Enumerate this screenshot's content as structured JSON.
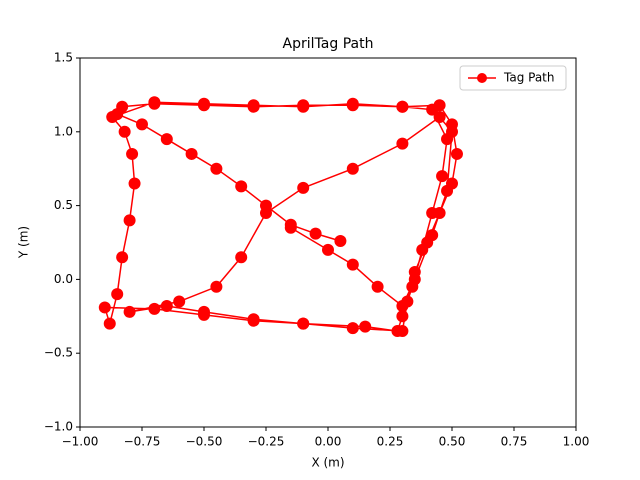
{
  "chart_data": {
    "type": "line",
    "title": "AprilTag Path",
    "x_label": "X (m)",
    "y_label": "Y (m)",
    "x": [
      0.05,
      -0.05,
      -0.15,
      -0.25,
      -0.35,
      -0.45,
      -0.55,
      -0.65,
      -0.75,
      -0.85,
      -0.83,
      -0.7,
      -0.5,
      -0.3,
      -0.1,
      0.1,
      0.3,
      0.45,
      0.5,
      0.52,
      0.5,
      0.45,
      0.4,
      0.35,
      0.32,
      0.3,
      0.1,
      -0.1,
      -0.3,
      -0.5,
      -0.7,
      -0.9,
      -0.88,
      -0.85,
      -0.83,
      -0.8,
      -0.78,
      -0.79,
      -0.82,
      -0.87,
      -0.7,
      -0.5,
      -0.3,
      -0.1,
      0.1,
      0.3,
      0.42,
      0.48,
      0.46,
      0.42,
      0.38,
      0.34,
      0.3,
      0.28,
      0.15,
      -0.1,
      -0.3,
      -0.5,
      -0.65,
      -0.8,
      -0.6,
      -0.45,
      -0.35,
      -0.25,
      -0.1,
      0.1,
      0.3,
      0.45,
      0.5,
      0.48,
      0.42,
      0.35,
      0.3,
      0.2,
      0.1,
      0.0,
      -0.15
    ],
    "series": [
      {
        "name": "Tag Path",
        "color": "#ff0000",
        "values": [
          0.26,
          0.31,
          0.37,
          0.5,
          0.63,
          0.75,
          0.85,
          0.95,
          1.05,
          1.12,
          1.17,
          1.19,
          1.18,
          1.17,
          1.18,
          1.18,
          1.17,
          1.18,
          1.05,
          0.85,
          0.65,
          0.45,
          0.25,
          0.05,
          -0.15,
          -0.35,
          -0.33,
          -0.3,
          -0.28,
          -0.24,
          -0.2,
          -0.19,
          -0.3,
          -0.1,
          0.15,
          0.4,
          0.65,
          0.85,
          1.0,
          1.1,
          1.2,
          1.19,
          1.18,
          1.17,
          1.19,
          1.17,
          1.15,
          0.95,
          0.7,
          0.45,
          0.2,
          -0.05,
          -0.25,
          -0.35,
          -0.32,
          -0.3,
          -0.27,
          -0.22,
          -0.18,
          -0.22,
          -0.15,
          -0.05,
          0.15,
          0.45,
          0.62,
          0.75,
          0.92,
          1.1,
          1.0,
          0.6,
          0.3,
          0.0,
          -0.18,
          -0.05,
          0.1,
          0.2,
          0.35
        ]
      }
    ],
    "xlim": [
      -1.0,
      1.0
    ],
    "ylim": [
      -1.0,
      1.5
    ],
    "xticks": [
      {
        "value": -1.0,
        "label": "−1.00"
      },
      {
        "value": -0.75,
        "label": "−0.75"
      },
      {
        "value": -0.5,
        "label": "−0.50"
      },
      {
        "value": -0.25,
        "label": "−0.25"
      },
      {
        "value": 0.0,
        "label": "0.00"
      },
      {
        "value": 0.25,
        "label": "0.25"
      },
      {
        "value": 0.5,
        "label": "0.50"
      },
      {
        "value": 0.75,
        "label": "0.75"
      },
      {
        "value": 1.0,
        "label": "1.00"
      }
    ],
    "yticks": [
      {
        "value": -1.0,
        "label": "−1.0"
      },
      {
        "value": -0.5,
        "label": "−0.5"
      },
      {
        "value": 0.0,
        "label": "0.0"
      },
      {
        "value": 0.5,
        "label": "0.5"
      },
      {
        "value": 1.0,
        "label": "1.0"
      },
      {
        "value": 1.5,
        "label": "1.5"
      }
    ],
    "legend": "upper right",
    "marker": "circle"
  }
}
